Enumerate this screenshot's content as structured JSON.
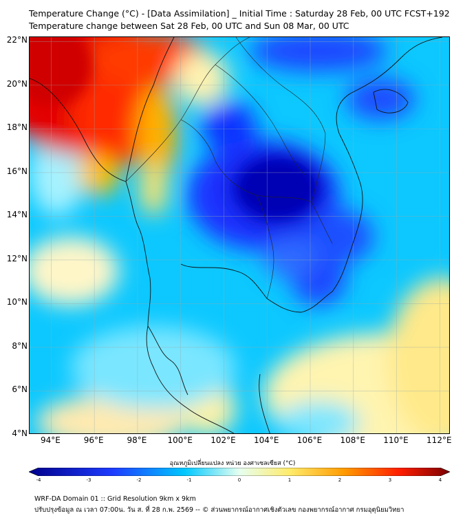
{
  "header": {
    "title_line1": "Temperature Change (°C) - [Data Assimilation] _ Initial Time : Saturday 28 Feb, 00 UTC FCST+192",
    "title_line2": "Temperature change between Sat 28 Feb, 00 UTC and Sun 08 Mar, 00 UTC"
  },
  "map": {
    "lat_labels": [
      "22°N",
      "20°N",
      "18°N",
      "16°N",
      "14°N",
      "12°N",
      "10°N",
      "8°N",
      "6°N",
      "4°N"
    ],
    "lon_labels": [
      "94°E",
      "96°E",
      "98°E",
      "100°E",
      "102°E",
      "104°E",
      "106°E",
      "108°E",
      "110°E",
      "112°E"
    ],
    "lat_values": [
      22,
      20,
      18,
      16,
      14,
      12,
      10,
      8,
      6,
      4
    ],
    "lon_values": [
      94,
      96,
      98,
      100,
      102,
      104,
      106,
      108,
      110,
      112
    ],
    "lon_range": [
      93,
      112.5
    ],
    "lat_range": [
      4,
      22.2
    ]
  },
  "colorbar": {
    "label": "อุณหภูมิเปลี่ยนแปลง หน่วย องศาเซลเซียส (°C)",
    "ticks": [
      "-4",
      "-3",
      "-2",
      "-1",
      "0",
      "1",
      "2",
      "3",
      "4"
    ],
    "range": [
      -4,
      4
    ],
    "colors": {
      "deep_blue": "#00008b",
      "blue": "#1e3cff",
      "light_blue": "#00c8ff",
      "pale": "#e6fff0",
      "yellow": "#ffeb6b",
      "orange": "#ff9a00",
      "red": "#ff1e00",
      "dark_red": "#7a0000"
    }
  },
  "footer": {
    "line1": "WRF-DA Domain 01 :: Grid Resolution 9km x 9km",
    "line2": "ปรับปรุงข้อมูล ณ เวลา 07:00น. วัน ส. ที่ 28 ก.พ. 2569 -- © ส่วนพยากรณ์อากาศเชิงตัวเลข กองพยากรณ์อากาศ กรมอุตุนิยมวิทยา"
  }
}
